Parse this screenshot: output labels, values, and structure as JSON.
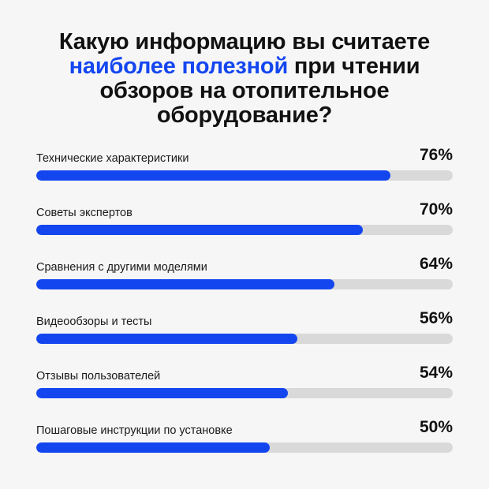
{
  "title": {
    "part1": "Какую информацию вы считаете ",
    "highlight": "наиболее полезной",
    "part2": " при чтении обзоров на отопительное оборудование?"
  },
  "colors": {
    "accent": "#1446f0",
    "track": "#d9d9d9",
    "background": "#f6f6f6",
    "text": "#111111"
  },
  "chart_data": {
    "type": "bar",
    "orientation": "horizontal",
    "xlim": [
      0,
      100
    ],
    "unit": "%",
    "categories": [
      "Технические характеристики",
      "Советы экспертов",
      "Сравнения с другими моделями",
      "Видеообзоры и тесты",
      "Отзывы пользователей",
      "Пошаговые инструкции по установке"
    ],
    "values": [
      76,
      70,
      64,
      56,
      54,
      50
    ],
    "value_labels": [
      "76%",
      "70%",
      "64%",
      "56%",
      "54%",
      "50%"
    ]
  }
}
